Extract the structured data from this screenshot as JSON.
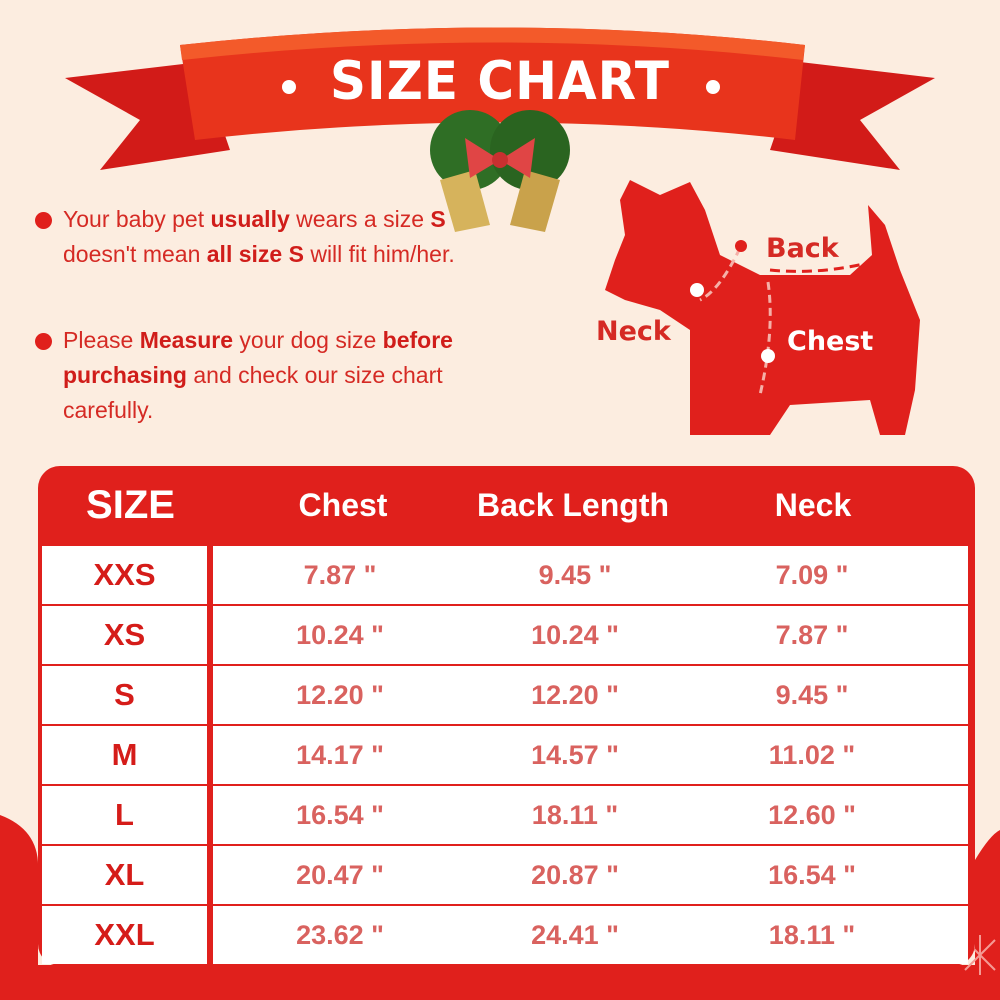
{
  "title": "SIZE CHART",
  "colors": {
    "background": "#fcede0",
    "accent": "#e0201c",
    "value_text": "#d9625f"
  },
  "bullets": [
    {
      "segments": [
        {
          "text": "Your baby pet ",
          "bold": false
        },
        {
          "text": "usually",
          "bold": true
        },
        {
          "text": " wears a size ",
          "bold": false
        },
        {
          "text": "S",
          "bold": true
        },
        {
          "text": " doesn't mean ",
          "bold": false
        },
        {
          "text": "all size S",
          "bold": true
        },
        {
          "text": " will fit him/her.",
          "bold": false
        }
      ]
    },
    {
      "segments": [
        {
          "text": "Please ",
          "bold": false
        },
        {
          "text": "Measure",
          "bold": true
        },
        {
          "text": " your dog size ",
          "bold": false
        },
        {
          "text": "before purchasing",
          "bold": true
        },
        {
          "text": " and check our size chart carefully.",
          "bold": false
        }
      ]
    }
  ],
  "diagram": {
    "back": "Back",
    "neck": "Neck",
    "chest": "Chest"
  },
  "table": {
    "headers": [
      "SIZE",
      "Chest",
      "Back Length",
      "Neck"
    ],
    "rows": [
      [
        "XXS",
        "7.87 \"",
        "9.45 \"",
        "7.09 \""
      ],
      [
        "XS",
        "10.24 \"",
        "10.24 \"",
        "7.87 \""
      ],
      [
        "S",
        "12.20 \"",
        "12.20 \"",
        "9.45 \""
      ],
      [
        "M",
        "14.17 \"",
        "14.57 \"",
        "11.02 \""
      ],
      [
        "L",
        "16.54 \"",
        "18.11 \"",
        "12.60 \""
      ],
      [
        "XL",
        "20.47 \"",
        "20.87 \"",
        "16.54 \""
      ],
      [
        "XXL",
        "23.62 \"",
        "24.41 \"",
        "18.11 \""
      ]
    ]
  }
}
